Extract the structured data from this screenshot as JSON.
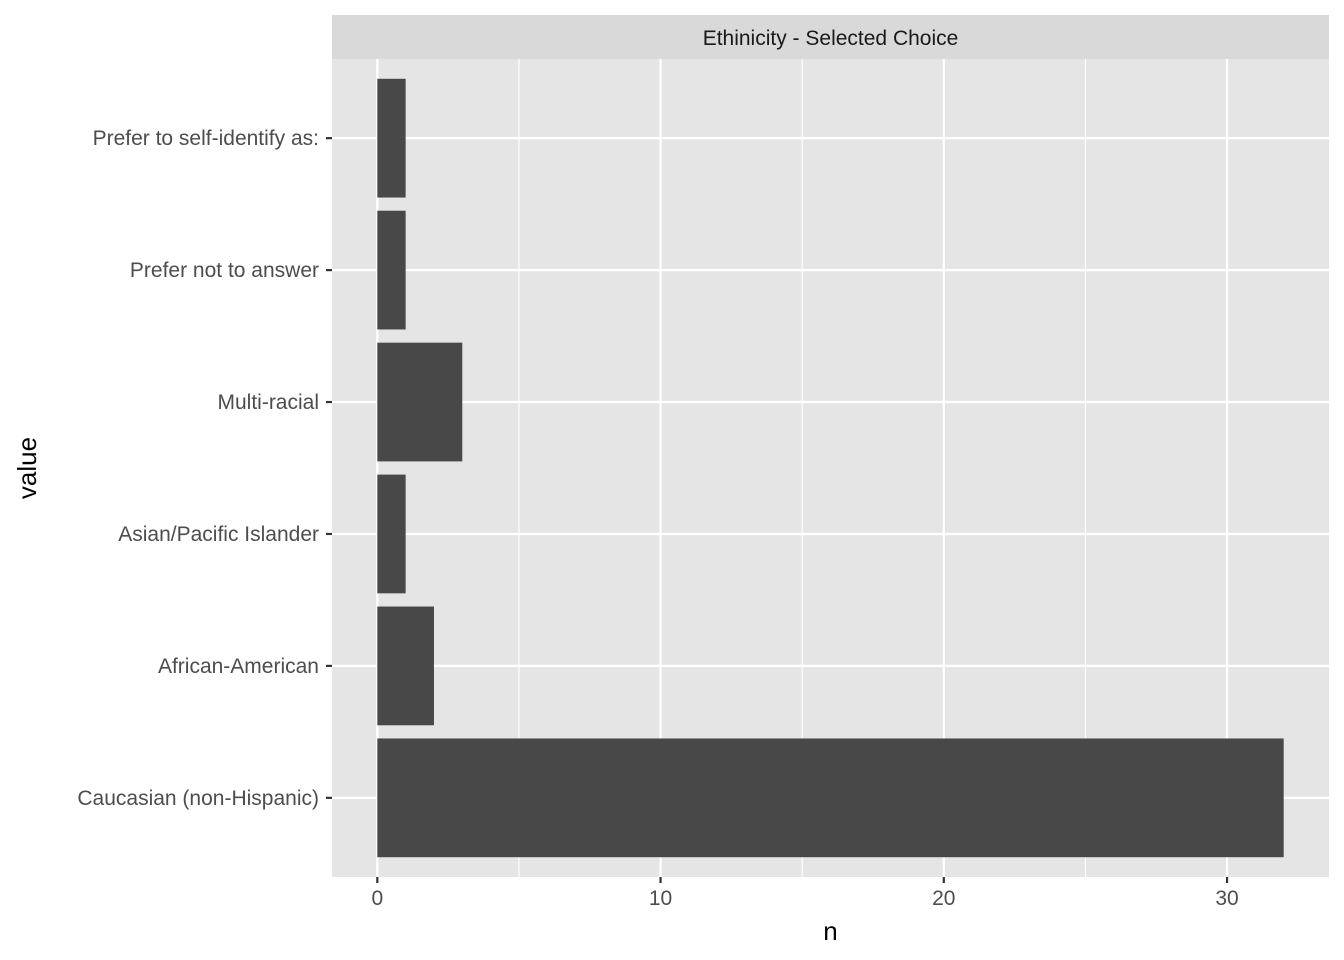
{
  "chart_data": {
    "type": "bar",
    "orientation": "horizontal",
    "facet_title": "Ethinicity - Selected Choice",
    "categories": [
      "Caucasian (non-Hispanic)",
      "African-American",
      "Asian/Pacific Islander",
      "Multi-racial",
      "Prefer not to answer",
      "Prefer to self-identify as:"
    ],
    "values": [
      32,
      2,
      1,
      3,
      1,
      1
    ],
    "xlabel": "n",
    "ylabel": "value",
    "xlim": [
      -1.6,
      33.6
    ],
    "x_ticks": [
      0,
      10,
      20,
      30
    ],
    "x_tick_labels": [
      "0",
      "10",
      "20",
      "30"
    ],
    "grid": true,
    "legend": "none",
    "colors": {
      "bar": "#484848",
      "panel": "#e5e5e5",
      "strip": "#d9d9d9",
      "grid": "#ffffff"
    }
  }
}
